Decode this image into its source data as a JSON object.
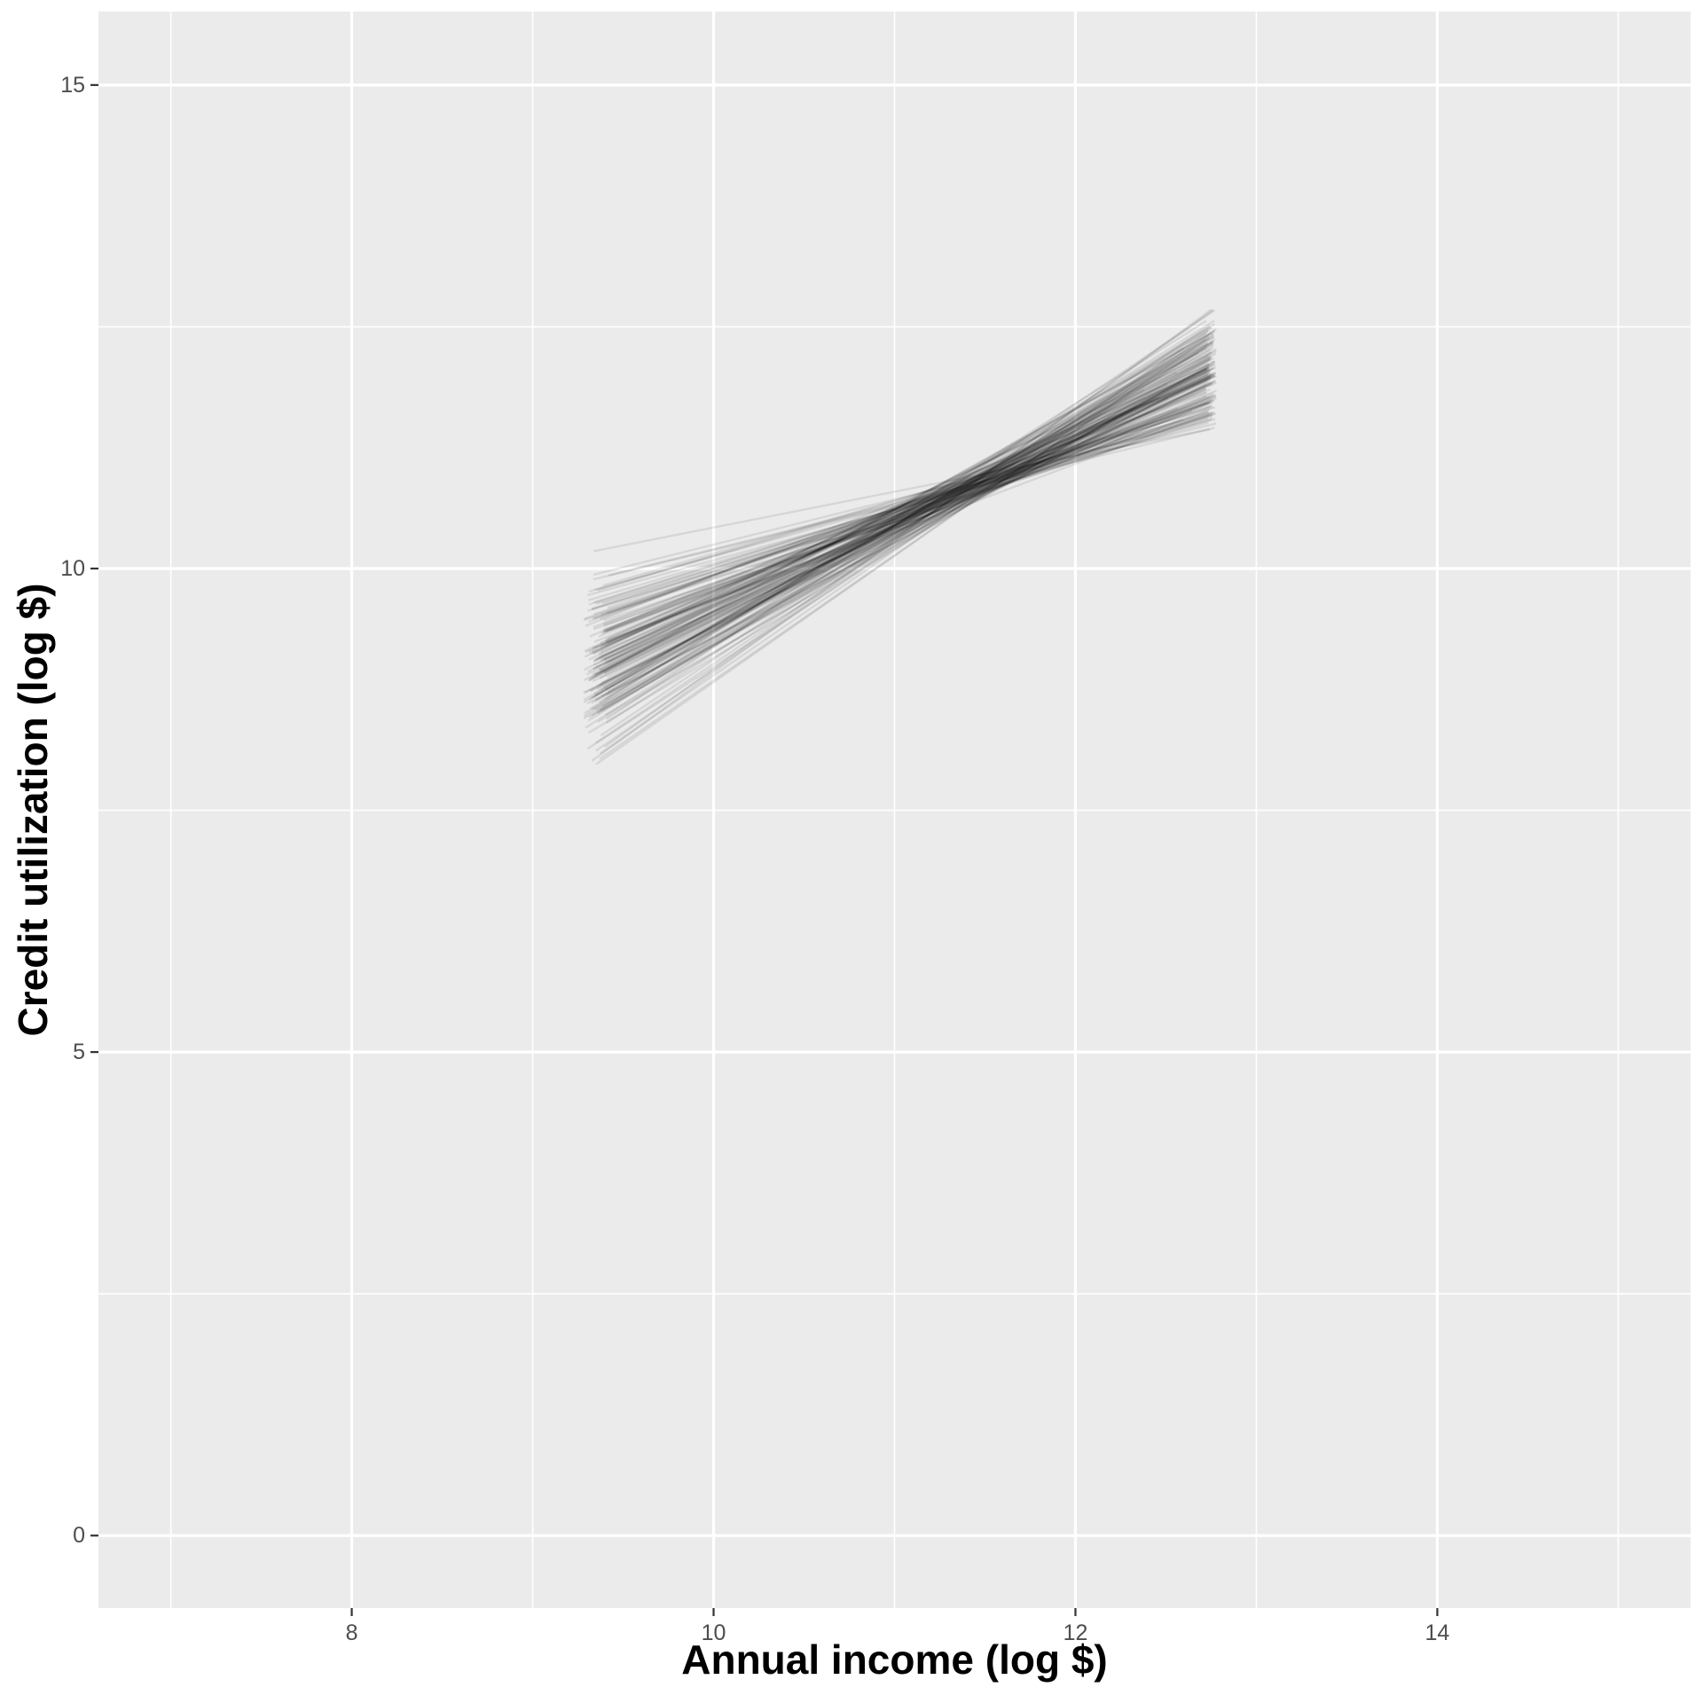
{
  "figure": {
    "background": "#FFFFFF",
    "panel_background": "#EBEBEB",
    "grid_color": "#FFFFFF",
    "tick_label_color": "#4D4D4D",
    "tick_mark_color": "#333333",
    "axis_title_color": "#000000"
  },
  "chart_data": {
    "type": "line",
    "subtype": "regression-line-ensemble",
    "title": "",
    "xlabel": "Annual income (log $)",
    "ylabel": "Credit utilization (log $)",
    "x_ticks": [
      8,
      10,
      12,
      14
    ],
    "x_tick_labels": [
      "8",
      "10",
      "12",
      "14"
    ],
    "x_minor_ticks": [
      7,
      9,
      11,
      13,
      15
    ],
    "y_ticks": [
      0,
      5,
      10,
      15
    ],
    "y_tick_labels": [
      "0",
      "5",
      "10",
      "15"
    ],
    "y_minor_ticks": [
      2.5,
      7.5,
      12.5
    ],
    "xlim": [
      6.6,
      15.4
    ],
    "ylim": [
      -0.75,
      15.76
    ],
    "grid": "white major and minor gridlines on gray panel",
    "legend": false,
    "ensemble": {
      "description": "Bundle of ~160 semi-transparent black fitted regression lines (bootstrap / posterior draws) of credit utilization vs annual income. Lines run from x ≈ 9.3 to x ≈ 12.8, fan out at both ends and cross near a pivot at (11.4, 10.8). Left endpoints span y ≈ 8.0–10.0, right endpoints span y ≈ 11.0–12.7.",
      "n_lines": 160,
      "color": "#000000",
      "alpha": 0.085,
      "stroke_width": 2.4,
      "pivot": {
        "x": 11.4,
        "y": 10.82,
        "x_jitter": 0.3,
        "y_jitter": 0.14
      },
      "slope": {
        "mean": 0.92,
        "sd": 0.2,
        "min": 0.37,
        "max": 1.45
      },
      "x_start": {
        "min": 9.28,
        "jitter": 0.14
      },
      "x_end": {
        "max": 12.78,
        "jitter": 0.06,
        "short_prob": 0.07,
        "short_extra": 0.3
      },
      "seed": 1337
    }
  }
}
